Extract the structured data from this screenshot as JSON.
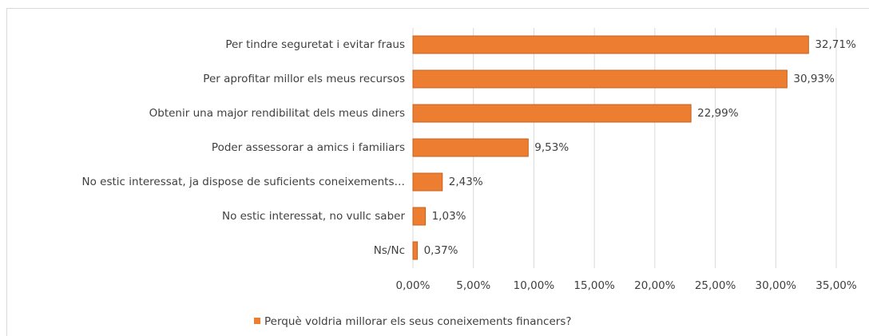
{
  "chart_data": {
    "type": "hbar",
    "categories": [
      "Per tindre seguretat i evitar fraus",
      "Per aprofitar millor els meus recursos",
      "Obtenir una major rendibilitat dels meus diners",
      "Poder assessorar a amics i familiars",
      "No estic interessat, ja dispose de suficients coneixements…",
      "No estic interessat, no vullc saber",
      "Ns/Nc"
    ],
    "series": [
      {
        "name": "Perquè voldria millorar els seus coneixements financers?",
        "color": "#ed7d31",
        "values": [
          32.71,
          30.93,
          22.99,
          9.53,
          2.43,
          1.03,
          0.37
        ],
        "value_labels": [
          "32,71%",
          "30,93%",
          "22,99%",
          "9,53%",
          "2,43%",
          "1,03%",
          "0,37%"
        ]
      }
    ],
    "xlim": [
      0,
      35
    ],
    "xticks": [
      {
        "value": 0,
        "label": "0,00%"
      },
      {
        "value": 5,
        "label": "5,00%"
      },
      {
        "value": 10,
        "label": "10,00%"
      },
      {
        "value": 15,
        "label": "15,00%"
      },
      {
        "value": 20,
        "label": "20,00%"
      },
      {
        "value": 25,
        "label": "25,00%"
      },
      {
        "value": 30,
        "label": "30,00%"
      },
      {
        "value": 35,
        "label": "35,00%"
      }
    ],
    "grid": true,
    "legend": "bottom"
  }
}
